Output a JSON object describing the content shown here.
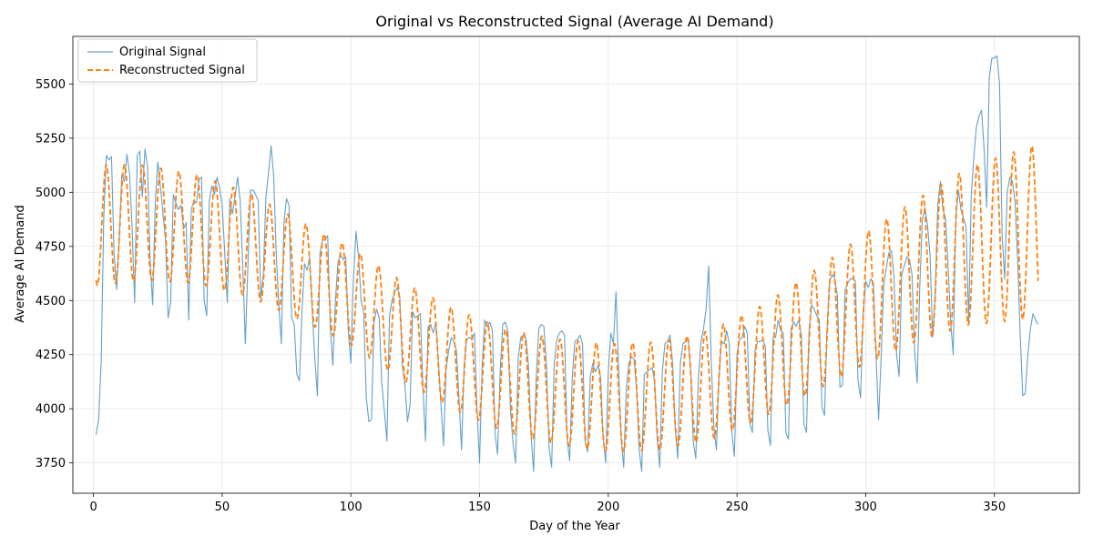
{
  "chart_data": {
    "type": "line",
    "title": "Original vs Reconstructed Signal (Average AI Demand)",
    "xlabel": "Day of the Year",
    "ylabel": "Average AI Demand",
    "xlim": [
      -8,
      383
    ],
    "ylim": [
      3610,
      5720
    ],
    "xticks": [
      0,
      50,
      100,
      150,
      200,
      250,
      300,
      350
    ],
    "yticks": [
      3750,
      4000,
      4250,
      4500,
      4750,
      5000,
      5250,
      5500
    ],
    "grid": true,
    "legend_position": "top-left",
    "series": [
      {
        "name": "Original Signal",
        "color": "#1f77b4",
        "style": "solid",
        "x_start": 1,
        "values": [
          3880,
          3950,
          4220,
          4880,
          5170,
          5150,
          5165,
          4720,
          4550,
          4780,
          5080,
          5050,
          5175,
          5090,
          4840,
          4490,
          5170,
          5190,
          4980,
          5200,
          5120,
          4690,
          4480,
          4950,
          5140,
          5030,
          4900,
          4780,
          4420,
          4490,
          4990,
          4950,
          4920,
          4940,
          4830,
          4860,
          4410,
          4920,
          4960,
          4950,
          5060,
          5070,
          4500,
          4430,
          4960,
          5030,
          4990,
          5070,
          5020,
          4940,
          4720,
          4490,
          4970,
          4900,
          4980,
          5070,
          4960,
          4660,
          4300,
          4660,
          5010,
          5010,
          4990,
          4960,
          4510,
          4620,
          4980,
          5090,
          5215,
          5080,
          4720,
          4480,
          4300,
          4860,
          4970,
          4940,
          4420,
          4390,
          4160,
          4130,
          4450,
          4670,
          4640,
          4700,
          4450,
          4230,
          4060,
          4720,
          4780,
          4780,
          4800,
          4380,
          4200,
          4500,
          4680,
          4710,
          4690,
          4700,
          4360,
          4210,
          4600,
          4820,
          4700,
          4500,
          4440,
          4050,
          3940,
          3950,
          4400,
          4460,
          4420,
          4120,
          3990,
          3850,
          4430,
          4500,
          4540,
          4560,
          4520,
          4200,
          4110,
          3940,
          4020,
          4450,
          4420,
          4430,
          4440,
          4100,
          3850,
          4380,
          4390,
          4350,
          4400,
          4220,
          4020,
          3830,
          4180,
          4270,
          4330,
          4310,
          4270,
          4050,
          3810,
          4200,
          4320,
          4330,
          4320,
          4350,
          4000,
          3750,
          4200,
          4410,
          4380,
          4400,
          4360,
          3890,
          3790,
          4170,
          4390,
          4400,
          4360,
          4000,
          3840,
          3750,
          4230,
          4330,
          4340,
          4330,
          4200,
          3880,
          3710,
          4140,
          4370,
          4390,
          4380,
          4200,
          3820,
          3730,
          4210,
          4320,
          4350,
          4360,
          4340,
          3860,
          3760,
          4140,
          4310,
          4320,
          4340,
          4300,
          3850,
          3800,
          4150,
          4210,
          4170,
          4200,
          4150,
          3870,
          3750,
          4170,
          4350,
          4300,
          4540,
          4190,
          3860,
          3730,
          4090,
          4210,
          4240,
          4230,
          4090,
          3810,
          3710,
          4160,
          4170,
          4180,
          4190,
          4130,
          3860,
          3730,
          4170,
          4300,
          4310,
          4340,
          4210,
          3910,
          3770,
          4210,
          4300,
          4310,
          4320,
          4180,
          3850,
          3770,
          4140,
          4310,
          4370,
          4460,
          4660,
          4220,
          3920,
          3810,
          4140,
          4310,
          4300,
          4360,
          4300,
          3890,
          3780,
          4250,
          4320,
          4330,
          4380,
          4350,
          3930,
          3890,
          4270,
          4310,
          4310,
          4320,
          4290,
          3900,
          3830,
          4330,
          4330,
          4410,
          4360,
          4350,
          3890,
          3860,
          4370,
          4400,
          4380,
          4410,
          4340,
          3930,
          3890,
          4360,
          4480,
          4460,
          4430,
          4410,
          4010,
          3970,
          4370,
          4590,
          4620,
          4600,
          4520,
          4100,
          4110,
          4550,
          4580,
          4600,
          4600,
          4590,
          4130,
          4050,
          4430,
          4590,
          4560,
          4600,
          4580,
          4250,
          3950,
          4240,
          4570,
          4650,
          4720,
          4730,
          4610,
          4250,
          4150,
          4620,
          4660,
          4700,
          4690,
          4620,
          4270,
          4120,
          4560,
          4870,
          4930,
          4850,
          4710,
          4330,
          4520,
          4940,
          5050,
          4920,
          4880,
          4660,
          4400,
          4250,
          4880,
          5010,
          4920,
          4880,
          4840,
          4400,
          4980,
          5160,
          5300,
          5350,
          5380,
          5200,
          4930,
          5530,
          5620,
          5620,
          5630,
          5500,
          4800,
          4600,
          5000,
          5070,
          5050,
          4960,
          4700,
          4350,
          4060,
          4070,
          4250,
          4370,
          4440,
          4410,
          4390
        ]
      },
      {
        "name": "Reconstructed Signal",
        "color": "#ff7f0e",
        "style": "dashed",
        "x_start": 1,
        "amp_points": [
          [
            1,
            280
          ],
          [
            28,
            260
          ],
          [
            60,
            240
          ],
          [
            90,
            225
          ],
          [
            130,
            230
          ],
          [
            170,
            240
          ],
          [
            200,
            250
          ],
          [
            230,
            250
          ],
          [
            260,
            260
          ],
          [
            290,
            290
          ],
          [
            320,
            330
          ],
          [
            350,
            380
          ],
          [
            366,
            400
          ]
        ],
        "mean_points": [
          [
            1,
            4850
          ],
          [
            20,
            4860
          ],
          [
            40,
            4830
          ],
          [
            60,
            4760
          ],
          [
            80,
            4640
          ],
          [
            100,
            4520
          ],
          [
            120,
            4360
          ],
          [
            140,
            4230
          ],
          [
            160,
            4130
          ],
          [
            180,
            4080
          ],
          [
            200,
            4050
          ],
          [
            220,
            4060
          ],
          [
            240,
            4110
          ],
          [
            260,
            4220
          ],
          [
            280,
            4360
          ],
          [
            300,
            4510
          ],
          [
            320,
            4640
          ],
          [
            340,
            4750
          ],
          [
            366,
            4820
          ]
        ],
        "period": 7.05,
        "phase_day": 5
      }
    ]
  }
}
